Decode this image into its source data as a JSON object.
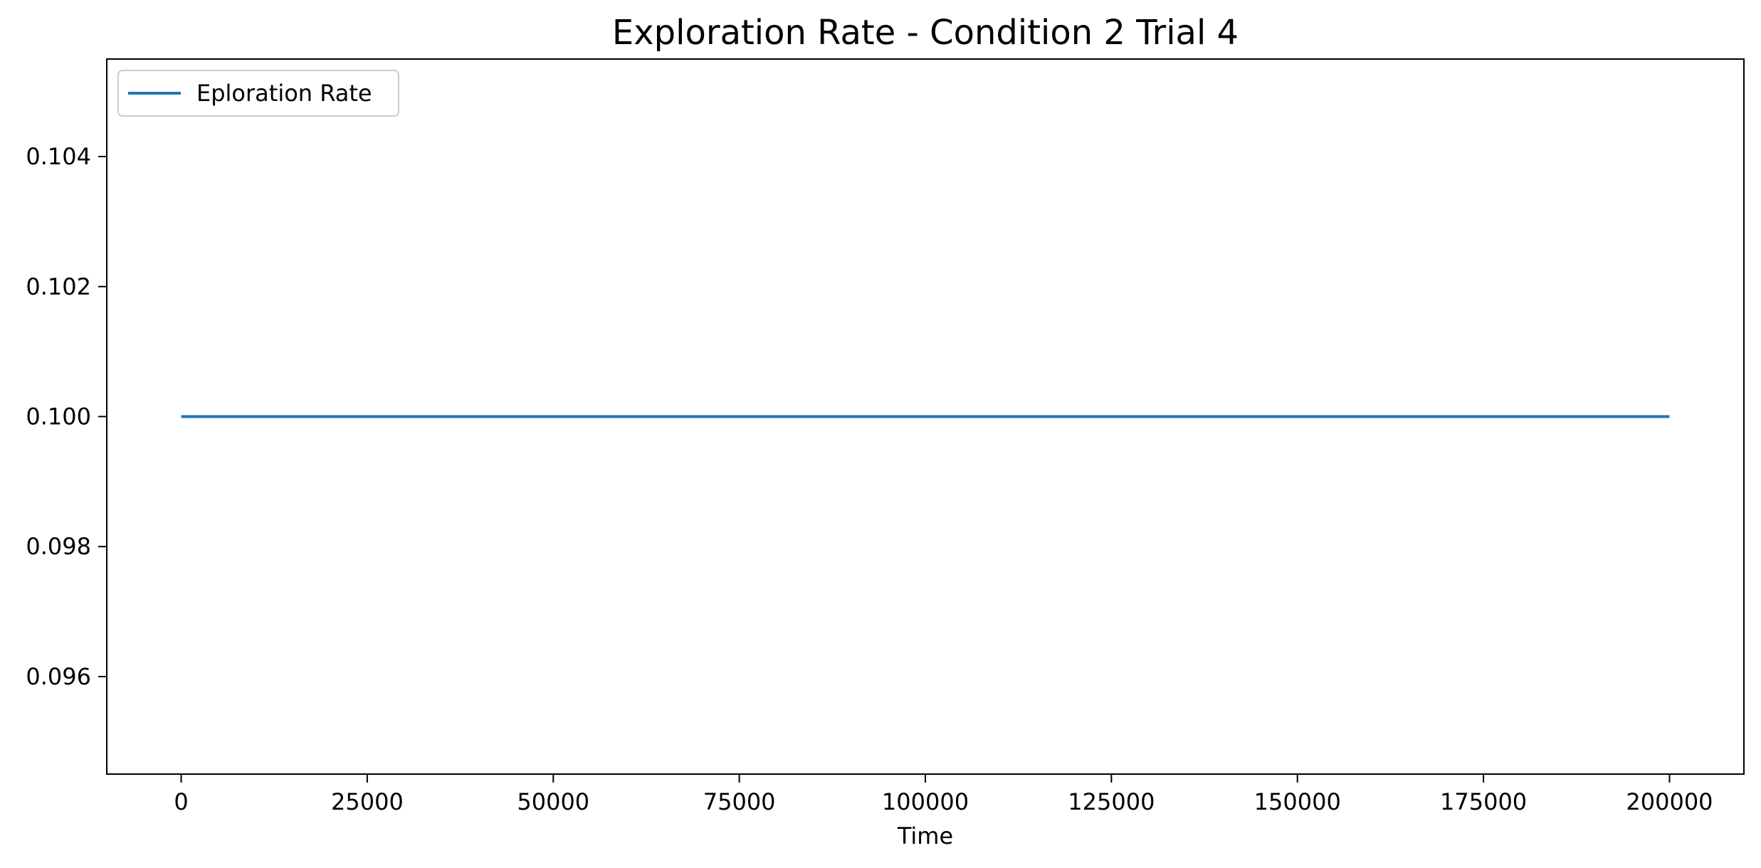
{
  "chart_data": {
    "type": "line",
    "title": "Exploration Rate - Condition 2 Trial 4",
    "xlabel": "Time",
    "ylabel": "",
    "xlim": [
      -10000,
      210000
    ],
    "ylim": [
      0.0945,
      0.1055
    ],
    "xticks": [
      0,
      25000,
      50000,
      75000,
      100000,
      125000,
      150000,
      175000,
      200000
    ],
    "xtick_labels": [
      "0",
      "25000",
      "50000",
      "75000",
      "100000",
      "125000",
      "150000",
      "175000",
      "200000"
    ],
    "yticks": [
      0.096,
      0.098,
      0.1,
      0.102,
      0.104
    ],
    "ytick_labels": [
      "0.096",
      "0.098",
      "0.100",
      "0.102",
      "0.104"
    ],
    "grid": false,
    "legend_position": "top-left",
    "series": [
      {
        "name": "Eploration Rate",
        "color": "#1f77b4",
        "x": [
          0,
          200000
        ],
        "y": [
          0.1,
          0.1
        ]
      }
    ]
  }
}
